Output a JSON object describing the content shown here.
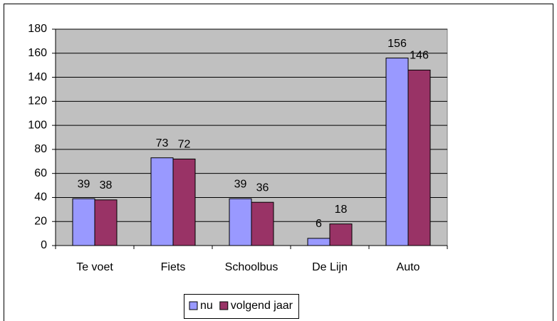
{
  "chart_data": {
    "type": "bar",
    "categories": [
      "Te voet",
      "Fiets",
      "Schoolbus",
      "De Lijn",
      "Auto"
    ],
    "series": [
      {
        "name": "nu",
        "color": "#9999ff",
        "values": [
          39,
          73,
          39,
          6,
          156
        ]
      },
      {
        "name": "volgend jaar",
        "color": "#993366",
        "values": [
          38,
          72,
          36,
          18,
          146
        ]
      }
    ],
    "ylim": [
      0,
      180
    ],
    "yticks": [
      0,
      20,
      40,
      60,
      80,
      100,
      120,
      140,
      160,
      180
    ],
    "grid": true,
    "legend": "bottom",
    "plot_background": "#c0c0c0"
  }
}
